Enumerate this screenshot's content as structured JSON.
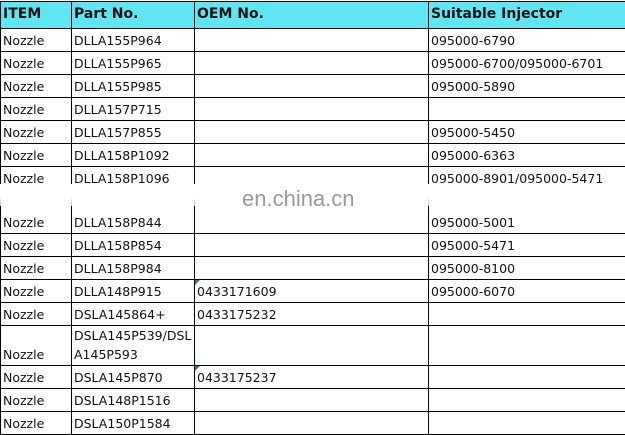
{
  "headers": [
    "ITEM",
    "Part No.",
    "OEM No.",
    "Suitable Injector"
  ],
  "rows": [
    {
      "item": "Nozzle",
      "part": "DLLA155P964",
      "oem": "",
      "injector": "095000-6790"
    },
    {
      "item": "Nozzle",
      "part": "DLLA155P965",
      "oem": "",
      "injector": "095000-6700/095000-6701"
    },
    {
      "item": "Nozzle",
      "part": "DLLA155P985",
      "oem": "",
      "injector": "095000-5890"
    },
    {
      "item": "Nozzle",
      "part": "DLLA157P715",
      "oem": "",
      "injector": ""
    },
    {
      "item": "Nozzle",
      "part": "DLLA157P855",
      "oem": "",
      "injector": "095000-5450"
    },
    {
      "item": "Nozzle",
      "part": "DLLA158P1092",
      "oem": "",
      "injector": "095000-6363"
    },
    {
      "item": "Nozzle",
      "part": "DLLA158P1096",
      "oem": "",
      "injector": "095000-8901/095000-5471"
    },
    {
      "item": "Nozzle",
      "part": "DLLA158P844",
      "oem": "",
      "injector": "095000-5001",
      "tall": true
    },
    {
      "item": "Nozzle",
      "part": "DLLA158P854",
      "oem": "",
      "injector": "095000-5471"
    },
    {
      "item": "Nozzle",
      "part": "DLLA158P984",
      "oem": "",
      "injector": "095000-8100"
    },
    {
      "item": "Nozzle",
      "part": "DLLA148P915",
      "oem": "0433171609",
      "injector": "095000-6070",
      "mark": true
    },
    {
      "item": "Nozzle",
      "part": "DSLA145864+",
      "oem": "0433175232",
      "injector": ""
    },
    {
      "item": "Nozzle",
      "part": "DSLA145P539/DSLA145P593",
      "oem": "",
      "injector": "",
      "multi": true
    },
    {
      "item": "Nozzle",
      "part": "DSLA145P870",
      "oem": "0433175237",
      "injector": "",
      "mark": true
    },
    {
      "item": "Nozzle",
      "part": "DSLA148P1516",
      "oem": "",
      "injector": ""
    },
    {
      "item": "Nozzle",
      "part": "DSLA150P1584",
      "oem": "",
      "injector": ""
    }
  ],
  "watermark": "en.china.cn",
  "colors": {
    "header_bg": "#5fe6f2",
    "comment_mark": "#2a7a9a"
  }
}
